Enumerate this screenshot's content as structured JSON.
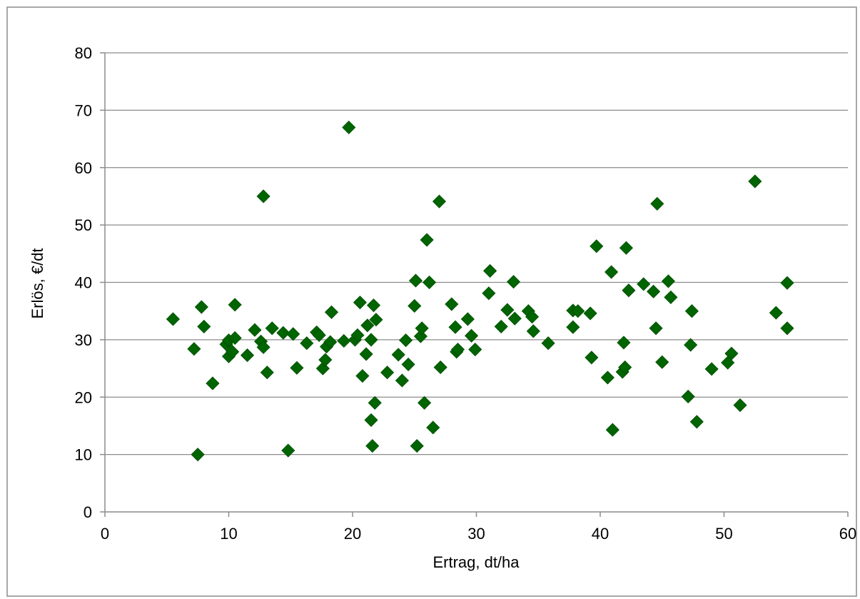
{
  "chart_data": {
    "type": "scatter",
    "title": "",
    "xlabel": "Ertrag, dt/ha",
    "ylabel": "Erlös, €/dt",
    "xlim": [
      0,
      60
    ],
    "ylim": [
      0,
      80
    ],
    "xticks": [
      "0",
      "10",
      "20",
      "30",
      "40",
      "50",
      "60"
    ],
    "yticks": [
      "0",
      "10",
      "20",
      "30",
      "40",
      "50",
      "60",
      "70",
      "80"
    ],
    "grid": "horizontal",
    "legend": "none",
    "marker": "diamond",
    "color": "#006400",
    "series": [
      {
        "points": [
          [
            5.5,
            33.6
          ],
          [
            7.2,
            28.4
          ],
          [
            7.5,
            10.0
          ],
          [
            7.8,
            35.7
          ],
          [
            8.0,
            32.3
          ],
          [
            8.7,
            22.4
          ],
          [
            9.8,
            29.2
          ],
          [
            10.0,
            29.9
          ],
          [
            10.0,
            27.1
          ],
          [
            10.3,
            27.9
          ],
          [
            10.5,
            36.1
          ],
          [
            10.5,
            30.3
          ],
          [
            11.5,
            27.3
          ],
          [
            12.1,
            31.7
          ],
          [
            12.6,
            29.7
          ],
          [
            12.8,
            28.7
          ],
          [
            12.8,
            55.0
          ],
          [
            13.1,
            24.3
          ],
          [
            13.5,
            32.0
          ],
          [
            14.4,
            31.2
          ],
          [
            14.8,
            10.7
          ],
          [
            15.2,
            31.0
          ],
          [
            15.5,
            25.1
          ],
          [
            16.3,
            29.4
          ],
          [
            17.1,
            31.3
          ],
          [
            17.3,
            30.8
          ],
          [
            17.6,
            25.0
          ],
          [
            17.8,
            26.5
          ],
          [
            17.9,
            28.8
          ],
          [
            18.2,
            29.6
          ],
          [
            18.3,
            34.8
          ],
          [
            19.3,
            29.8
          ],
          [
            19.7,
            67.0
          ],
          [
            20.2,
            30.0
          ],
          [
            20.4,
            30.8
          ],
          [
            20.6,
            36.5
          ],
          [
            20.8,
            23.7
          ],
          [
            21.1,
            27.5
          ],
          [
            21.2,
            32.5
          ],
          [
            21.5,
            30.0
          ],
          [
            21.5,
            16.0
          ],
          [
            21.6,
            11.5
          ],
          [
            21.7,
            36.0
          ],
          [
            21.8,
            19.0
          ],
          [
            21.9,
            33.5
          ],
          [
            22.8,
            24.3
          ],
          [
            23.7,
            27.4
          ],
          [
            24.0,
            22.9
          ],
          [
            24.3,
            29.9
          ],
          [
            24.5,
            25.7
          ],
          [
            25.0,
            35.9
          ],
          [
            25.1,
            40.3
          ],
          [
            25.2,
            11.5
          ],
          [
            25.5,
            30.6
          ],
          [
            25.6,
            32.0
          ],
          [
            25.8,
            19.0
          ],
          [
            26.0,
            47.4
          ],
          [
            26.2,
            40.0
          ],
          [
            26.5,
            14.7
          ],
          [
            27.0,
            54.1
          ],
          [
            27.1,
            25.2
          ],
          [
            28.0,
            36.2
          ],
          [
            28.3,
            32.2
          ],
          [
            28.4,
            27.9
          ],
          [
            28.5,
            28.3
          ],
          [
            29.3,
            33.6
          ],
          [
            29.6,
            30.7
          ],
          [
            29.9,
            28.3
          ],
          [
            31.0,
            38.1
          ],
          [
            31.1,
            42.0
          ],
          [
            32.0,
            32.3
          ],
          [
            32.5,
            35.2
          ],
          [
            33.0,
            40.1
          ],
          [
            33.1,
            33.7
          ],
          [
            34.2,
            35.0
          ],
          [
            34.5,
            34.0
          ],
          [
            34.6,
            31.5
          ],
          [
            35.8,
            29.4
          ],
          [
            37.8,
            35.1
          ],
          [
            37.8,
            32.2
          ],
          [
            38.2,
            35.0
          ],
          [
            39.2,
            34.6
          ],
          [
            39.3,
            26.9
          ],
          [
            39.7,
            46.3
          ],
          [
            40.6,
            23.4
          ],
          [
            40.9,
            41.8
          ],
          [
            41.0,
            14.3
          ],
          [
            41.8,
            24.4
          ],
          [
            41.9,
            29.5
          ],
          [
            42.0,
            25.2
          ],
          [
            42.1,
            46.0
          ],
          [
            42.3,
            38.6
          ],
          [
            43.5,
            39.7
          ],
          [
            44.3,
            38.4
          ],
          [
            44.5,
            32.0
          ],
          [
            44.6,
            53.7
          ],
          [
            45.0,
            26.1
          ],
          [
            45.5,
            40.2
          ],
          [
            45.7,
            37.4
          ],
          [
            47.1,
            20.1
          ],
          [
            47.3,
            29.1
          ],
          [
            47.4,
            35.0
          ],
          [
            47.8,
            15.7
          ],
          [
            49.0,
            24.9
          ],
          [
            50.3,
            26.0
          ],
          [
            50.6,
            27.6
          ],
          [
            51.3,
            18.6
          ],
          [
            52.5,
            57.6
          ],
          [
            54.2,
            34.7
          ],
          [
            55.1,
            32.0
          ],
          [
            55.1,
            39.9
          ]
        ]
      }
    ]
  }
}
